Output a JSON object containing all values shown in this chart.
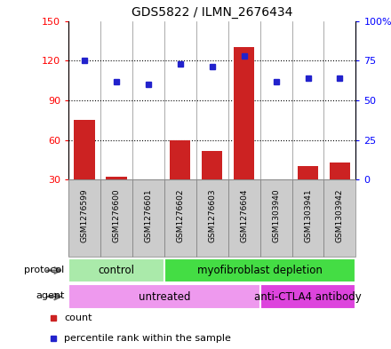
{
  "title": "GDS5822 / ILMN_2676434",
  "samples": [
    "GSM1276599",
    "GSM1276600",
    "GSM1276601",
    "GSM1276602",
    "GSM1276603",
    "GSM1276604",
    "GSM1303940",
    "GSM1303941",
    "GSM1303942"
  ],
  "counts": [
    75,
    32,
    30,
    60,
    52,
    130,
    29,
    40,
    43
  ],
  "percentiles": [
    75,
    62,
    60,
    73,
    71,
    78,
    62,
    64,
    64
  ],
  "left_ylim": [
    30,
    150
  ],
  "left_yticks": [
    30,
    60,
    90,
    120,
    150
  ],
  "right_ylim": [
    0,
    100
  ],
  "right_yticks": [
    0,
    25,
    50,
    75,
    100
  ],
  "right_yticklabels": [
    "0",
    "25",
    "50",
    "75",
    "100%"
  ],
  "bar_color": "#cc2222",
  "dot_color": "#2222cc",
  "protocol_labels": [
    {
      "text": "control",
      "start": 0,
      "end": 3,
      "color": "#aaeaaa"
    },
    {
      "text": "myofibroblast depletion",
      "start": 3,
      "end": 9,
      "color": "#44dd44"
    }
  ],
  "agent_labels": [
    {
      "text": "untreated",
      "start": 0,
      "end": 6,
      "color": "#ee99ee"
    },
    {
      "text": "anti-CTLA4 antibody",
      "start": 6,
      "end": 9,
      "color": "#dd44dd"
    }
  ],
  "protocol_row_label": "protocol",
  "agent_row_label": "agent",
  "legend_count": "count",
  "legend_percentile": "percentile rank within the sample",
  "col_bg": "#cccccc",
  "col_border": "#888888"
}
